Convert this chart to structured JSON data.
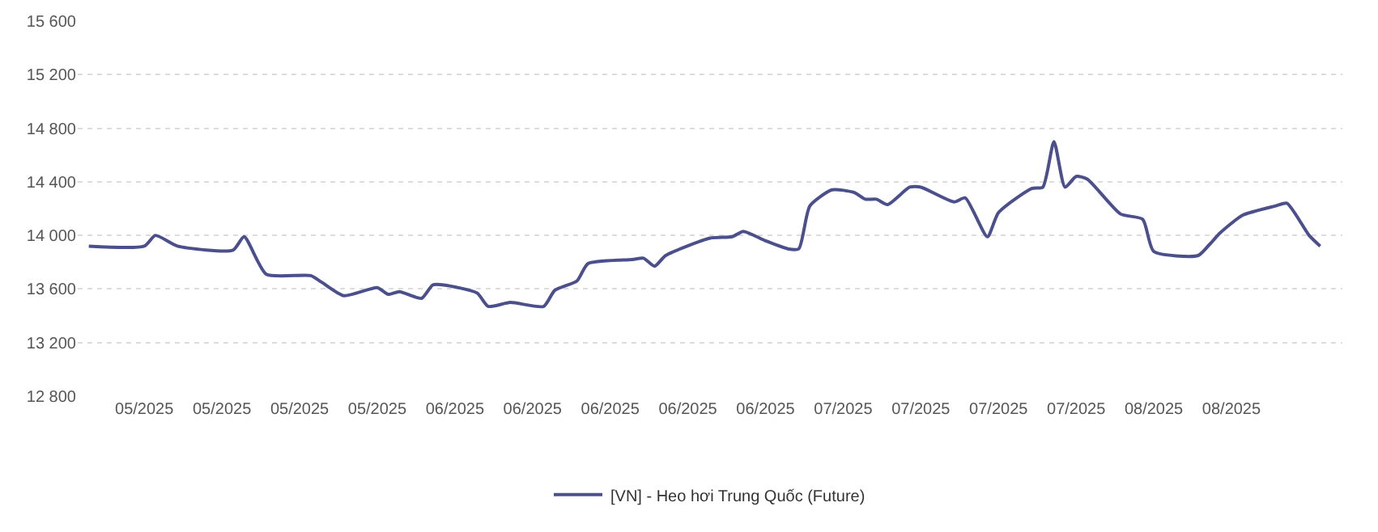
{
  "chart_data": {
    "type": "line",
    "x": [
      "2025-04-30",
      "2025-05-05",
      "2025-05-06",
      "2025-05-08",
      "2025-05-13",
      "2025-05-14",
      "2025-05-16",
      "2025-05-20",
      "2025-05-21",
      "2025-05-23",
      "2025-05-26",
      "2025-05-27",
      "2025-05-28",
      "2025-05-30",
      "2025-05-31",
      "2025-06-01",
      "2025-06-04",
      "2025-06-05",
      "2025-06-07",
      "2025-06-10",
      "2025-06-11",
      "2025-06-13",
      "2025-06-14",
      "2025-06-18",
      "2025-06-19",
      "2025-06-20",
      "2025-06-21",
      "2025-06-25",
      "2025-06-27",
      "2025-06-28",
      "2025-06-30",
      "2025-07-02",
      "2025-07-03",
      "2025-07-04",
      "2025-07-06",
      "2025-07-08",
      "2025-07-09",
      "2025-07-10",
      "2025-07-11",
      "2025-07-13",
      "2025-07-14",
      "2025-07-17",
      "2025-07-18",
      "2025-07-20",
      "2025-07-21",
      "2025-07-24",
      "2025-07-25",
      "2025-07-26",
      "2025-07-27",
      "2025-07-28",
      "2025-07-29",
      "2025-08-01",
      "2025-08-03",
      "2025-08-04",
      "2025-08-08",
      "2025-08-09",
      "2025-08-10",
      "2025-08-12",
      "2025-08-15",
      "2025-08-16",
      "2025-08-18",
      "2025-08-19"
    ],
    "series": [
      {
        "name": "[VN] - Heo hơi Trung Quốc (Future)",
        "color": "#4b4f8c",
        "values": [
          13920,
          13920,
          14000,
          13920,
          13890,
          13990,
          13710,
          13700,
          13650,
          13550,
          13610,
          13560,
          13580,
          13530,
          13630,
          13630,
          13570,
          13470,
          13500,
          13470,
          13590,
          13660,
          13790,
          13820,
          13830,
          13770,
          13850,
          13980,
          13990,
          14030,
          13960,
          13900,
          13900,
          14220,
          14340,
          14320,
          14270,
          14270,
          14230,
          14360,
          14360,
          14250,
          14280,
          13990,
          14170,
          14350,
          14360,
          14700,
          14360,
          14440,
          14420,
          14160,
          14120,
          13880,
          13850,
          13930,
          14020,
          14150,
          14220,
          14240,
          14000,
          13920
        ]
      }
    ],
    "xlim": [
      "2025-04-29",
      "2025-08-21"
    ],
    "xticks": [
      {
        "value": "2025-05-05",
        "label": "05/2025"
      },
      {
        "value": "2025-05-12",
        "label": "05/2025"
      },
      {
        "value": "2025-05-19",
        "label": "05/2025"
      },
      {
        "value": "2025-05-26",
        "label": "05/2025"
      },
      {
        "value": "2025-06-02",
        "label": "06/2025"
      },
      {
        "value": "2025-06-09",
        "label": "06/2025"
      },
      {
        "value": "2025-06-16",
        "label": "06/2025"
      },
      {
        "value": "2025-06-23",
        "label": "06/2025"
      },
      {
        "value": "2025-06-30",
        "label": "06/2025"
      },
      {
        "value": "2025-07-07",
        "label": "07/2025"
      },
      {
        "value": "2025-07-14",
        "label": "07/2025"
      },
      {
        "value": "2025-07-21",
        "label": "07/2025"
      },
      {
        "value": "2025-07-28",
        "label": "07/2025"
      },
      {
        "value": "2025-08-04",
        "label": "08/2025"
      },
      {
        "value": "2025-08-11",
        "label": "08/2025"
      }
    ],
    "ylim": [
      12800,
      15600
    ],
    "yticks": [
      {
        "value": 12800,
        "label": "12 800"
      },
      {
        "value": 13200,
        "label": "13 200"
      },
      {
        "value": 13600,
        "label": "13 600"
      },
      {
        "value": 14000,
        "label": "14 000"
      },
      {
        "value": 14400,
        "label": "14 400"
      },
      {
        "value": 14800,
        "label": "14 800"
      },
      {
        "value": 15200,
        "label": "15 200"
      },
      {
        "value": 15600,
        "label": "15 600"
      }
    ],
    "grid": "y",
    "legend": "bottom",
    "marker": "none",
    "line_style": "solid"
  }
}
